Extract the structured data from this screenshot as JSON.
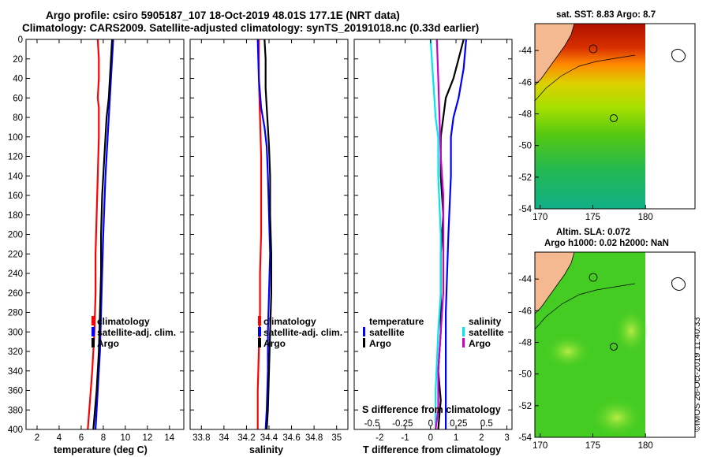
{
  "title": {
    "line1": "Argo profile: csiro 5905187_107 18-Oct-2019 48.01S 177.1E (NRT data)",
    "line2": "Climatology: CARS2009. Satellite-adjusted climatology: synTS_20191018.nc (0.33d earlier)"
  },
  "credit": "©IMOS 28-Oct-2019 11:40:33",
  "colors": {
    "climatology": "#ff0000",
    "satellite": "#0000ff",
    "argo": "#000000",
    "s_satellite": "#00e5ee",
    "s_argo": "#cc00cc",
    "land": "#f5b992",
    "sla_green": "#44cc22"
  },
  "depth_axis": {
    "ylim": [
      0,
      400
    ],
    "ticks": [
      0,
      20,
      40,
      60,
      80,
      100,
      120,
      140,
      160,
      180,
      200,
      220,
      240,
      260,
      280,
      300,
      320,
      340,
      360,
      380,
      400
    ]
  },
  "chart_data": [
    {
      "type": "line",
      "name": "temperature",
      "xlabel": "temperature (deg C)",
      "xlim": [
        1,
        15.3
      ],
      "xticks": [
        2,
        4,
        6,
        8,
        10,
        12,
        14
      ],
      "ylim": [
        0,
        400
      ],
      "legend": [
        "climatology",
        "satellite-adj. clim.",
        "Argo"
      ],
      "series": [
        {
          "name": "climatology",
          "color": "#ff0000",
          "points": [
            [
              7.5,
              0
            ],
            [
              7.6,
              20
            ],
            [
              7.6,
              40
            ],
            [
              7.5,
              60
            ],
            [
              7.6,
              70
            ],
            [
              7.6,
              100
            ],
            [
              7.5,
              140
            ],
            [
              7.4,
              180
            ],
            [
              7.3,
              220
            ],
            [
              7.3,
              260
            ],
            [
              7.2,
              300
            ],
            [
              7.0,
              340
            ],
            [
              6.8,
              370
            ],
            [
              6.6,
              400
            ]
          ]
        },
        {
          "name": "satellite-adj. clim.",
          "color": "#0000ff",
          "points": [
            [
              8.9,
              0
            ],
            [
              8.8,
              20
            ],
            [
              8.7,
              40
            ],
            [
              8.6,
              60
            ],
            [
              8.5,
              80
            ],
            [
              8.4,
              100
            ],
            [
              8.3,
              120
            ],
            [
              8.2,
              140
            ],
            [
              8.1,
              170
            ],
            [
              8.0,
              200
            ],
            [
              7.9,
              240
            ],
            [
              7.8,
              280
            ],
            [
              7.7,
              320
            ],
            [
              7.5,
              360
            ],
            [
              7.3,
              400
            ]
          ]
        },
        {
          "name": "Argo",
          "color": "#000000",
          "points": [
            [
              8.8,
              0
            ],
            [
              8.7,
              20
            ],
            [
              8.6,
              40
            ],
            [
              8.5,
              60
            ],
            [
              8.3,
              80
            ],
            [
              8.2,
              100
            ],
            [
              8.1,
              120
            ],
            [
              8.0,
              140
            ],
            [
              7.9,
              160
            ],
            [
              7.8,
              200
            ],
            [
              7.8,
              240
            ],
            [
              7.7,
              280
            ],
            [
              7.6,
              320
            ],
            [
              7.4,
              360
            ],
            [
              7.1,
              400
            ]
          ]
        }
      ]
    },
    {
      "type": "line",
      "name": "salinity",
      "xlabel": "salinity",
      "xlim": [
        33.7,
        35.1
      ],
      "xticks": [
        33.8,
        34,
        34.2,
        34.4,
        34.6,
        34.8,
        35
      ],
      "xticklabels": [
        "33.8",
        "34",
        "34.2",
        "34.4",
        "34.6",
        "34.8",
        "35"
      ],
      "ylim": [
        0,
        400
      ],
      "legend": [
        "climatology",
        "satellite-adj. clim.",
        "Argo"
      ],
      "series": [
        {
          "name": "climatology",
          "color": "#ff0000",
          "points": [
            [
              34.31,
              0
            ],
            [
              34.31,
              40
            ],
            [
              34.32,
              80
            ],
            [
              34.33,
              120
            ],
            [
              34.33,
              160
            ],
            [
              34.33,
              200
            ],
            [
              34.32,
              240
            ],
            [
              34.32,
              280
            ],
            [
              34.31,
              320
            ],
            [
              34.3,
              360
            ],
            [
              34.3,
              400
            ]
          ]
        },
        {
          "name": "satellite-adj. clim.",
          "color": "#0000ff",
          "points": [
            [
              34.3,
              0
            ],
            [
              34.31,
              40
            ],
            [
              34.33,
              70
            ],
            [
              34.36,
              90
            ],
            [
              34.38,
              110
            ],
            [
              34.39,
              140
            ],
            [
              34.4,
              180
            ],
            [
              34.41,
              220
            ],
            [
              34.4,
              260
            ],
            [
              34.39,
              300
            ],
            [
              34.39,
              340
            ],
            [
              34.38,
              380
            ],
            [
              34.37,
              400
            ]
          ]
        },
        {
          "name": "Argo",
          "color": "#000000",
          "points": [
            [
              34.36,
              0
            ],
            [
              34.37,
              20
            ],
            [
              34.37,
              50
            ],
            [
              34.38,
              70
            ],
            [
              34.39,
              90
            ],
            [
              34.4,
              110
            ],
            [
              34.41,
              140
            ],
            [
              34.41,
              180
            ],
            [
              34.42,
              220
            ],
            [
              34.42,
              260
            ],
            [
              34.41,
              300
            ],
            [
              34.4,
              340
            ],
            [
              34.39,
              380
            ],
            [
              34.38,
              400
            ]
          ]
        }
      ]
    },
    {
      "type": "line",
      "name": "difference",
      "xlabel": "T difference from climatology",
      "xlabel_top": "S difference from climatology",
      "xlim": [
        -3,
        3.2
      ],
      "xticks": [
        -2,
        -1,
        0,
        1,
        2,
        3
      ],
      "s_xticklabels": [
        {
          "x": -2.3,
          "label": "-0.5"
        },
        {
          "x": -1.1,
          "label": "-0.25"
        },
        {
          "x": 0,
          "label": "0"
        },
        {
          "x": 1.1,
          "label": "0.25"
        },
        {
          "x": 2.2,
          "label": "0.5"
        }
      ],
      "ylim": [
        0,
        400
      ],
      "legend_temperature": [
        "temperature",
        "satellite",
        "Argo"
      ],
      "legend_salinity": [
        "salinity",
        "satellite",
        "Argo"
      ],
      "series": [
        {
          "name": "T satellite",
          "color": "#0000ff",
          "points": [
            [
              1.4,
              0
            ],
            [
              1.3,
              30
            ],
            [
              1.1,
              60
            ],
            [
              0.9,
              80
            ],
            [
              0.8,
              100
            ],
            [
              0.8,
              140
            ],
            [
              0.7,
              200
            ],
            [
              0.6,
              280
            ],
            [
              0.6,
              340
            ],
            [
              0.6,
              400
            ]
          ]
        },
        {
          "name": "T Argo",
          "color": "#000000",
          "points": [
            [
              1.3,
              0
            ],
            [
              1.1,
              20
            ],
            [
              0.9,
              40
            ],
            [
              0.6,
              60
            ],
            [
              0.5,
              80
            ],
            [
              0.4,
              100
            ],
            [
              0.4,
              140
            ],
            [
              0.5,
              180
            ],
            [
              0.4,
              220
            ],
            [
              0.4,
              300
            ],
            [
              0.3,
              340
            ],
            [
              0.4,
              370
            ],
            [
              0.3,
              400
            ]
          ]
        },
        {
          "name": "S satellite",
          "color": "#00e5ee",
          "points": [
            [
              0.0,
              0
            ],
            [
              0.1,
              40
            ],
            [
              0.2,
              80
            ],
            [
              0.3,
              100
            ],
            [
              0.3,
              140
            ],
            [
              0.4,
              200
            ],
            [
              0.4,
              260
            ],
            [
              0.3,
              300
            ],
            [
              0.2,
              360
            ],
            [
              0.2,
              400
            ]
          ]
        },
        {
          "name": "S Argo",
          "color": "#cc00cc",
          "points": [
            [
              0.25,
              0
            ],
            [
              0.3,
              40
            ],
            [
              0.35,
              80
            ],
            [
              0.4,
              120
            ],
            [
              0.5,
              160
            ],
            [
              0.5,
              200
            ],
            [
              0.5,
              260
            ],
            [
              0.4,
              300
            ],
            [
              0.3,
              340
            ],
            [
              0.3,
              380
            ],
            [
              0.2,
              400
            ]
          ]
        }
      ]
    },
    {
      "type": "heatmap",
      "name": "sst-map",
      "title": "sat. SST: 8.83 Argo: 8.7",
      "xlim": [
        169.5,
        184.7
      ],
      "ylim": [
        -54,
        -42.3
      ],
      "xticks": [
        170,
        175,
        180
      ],
      "yticks": [
        -44,
        -46,
        -48,
        -50,
        -52,
        -54
      ],
      "argo_position": [
        177.1,
        -48.01
      ]
    },
    {
      "type": "heatmap",
      "name": "sla-map",
      "title_line1": "Altim. SLA: 0.072",
      "title_line2": "Argo h1000: 0.02 h2000: NaN",
      "xlim": [
        169.5,
        184.7
      ],
      "ylim": [
        -54,
        -42.3
      ],
      "xticks": [
        170,
        175,
        180
      ],
      "yticks": [
        -44,
        -46,
        -48,
        -50,
        -52,
        -54
      ],
      "argo_position": [
        177.1,
        -48.01
      ]
    }
  ]
}
